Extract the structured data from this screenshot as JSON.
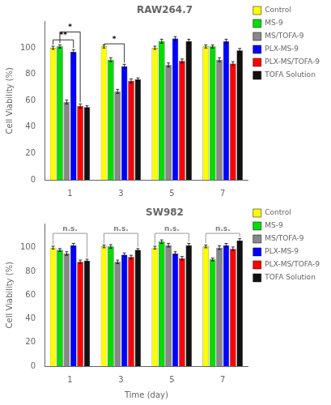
{
  "chart_data": [
    {
      "type": "bar",
      "title": "RAW264.7",
      "categories": [
        1,
        3,
        5,
        7
      ],
      "ylabel": "Cell Viability (%)",
      "ylim": [
        0,
        120
      ],
      "yticks": [
        0,
        20,
        40,
        60,
        80,
        100
      ],
      "grid": false,
      "legend": "right",
      "series": [
        {
          "name": "Control",
          "color": "#ffff00",
          "values": [
            100,
            101,
            100,
            101
          ],
          "errors": [
            1.2,
            1.2,
            1.2,
            1.2
          ]
        },
        {
          "name": "MS-9",
          "color": "#00dd00",
          "values": [
            101,
            91,
            105,
            101
          ],
          "errors": [
            1.2,
            1.5,
            1.5,
            1.2
          ]
        },
        {
          "name": "MS/TOFA-9",
          "color": "#888888",
          "values": [
            59,
            67,
            87,
            91
          ],
          "errors": [
            1.5,
            1.5,
            1.5,
            1.5
          ]
        },
        {
          "name": "PLX-MS-9",
          "color": "#0000ff",
          "values": [
            97,
            86,
            107,
            105
          ],
          "errors": [
            1.5,
            1.5,
            1.5,
            1.5
          ]
        },
        {
          "name": "PLX-MS/TOFA-9",
          "color": "#ff0000",
          "values": [
            56,
            75,
            90,
            88
          ],
          "errors": [
            1.5,
            1.5,
            1.5,
            1.5
          ]
        },
        {
          "name": "TOFA Solution",
          "color": "#111111",
          "values": [
            55,
            76,
            105,
            98
          ],
          "errors": [
            1.2,
            1.2,
            1.5,
            1.5
          ]
        }
      ],
      "annotations": [
        {
          "text": "**",
          "category": 1,
          "from": "Control",
          "to": "PLX-MS-9",
          "y": 106,
          "color": "black"
        },
        {
          "text": "*",
          "category": 1,
          "from": "MS-9",
          "to": "PLX-MS/TOFA-9",
          "y": 112,
          "color": "black"
        },
        {
          "text": "*",
          "category": 3,
          "from": "Control",
          "to": "PLX-MS-9",
          "y": 103,
          "color": "black"
        }
      ]
    },
    {
      "type": "bar",
      "title": "SW982",
      "categories": [
        1,
        3,
        5,
        7
      ],
      "xlabel": "Time (day)",
      "ylabel": "Cell Viability (%)",
      "ylim": [
        0,
        120
      ],
      "yticks": [
        0,
        20,
        40,
        60,
        80,
        100
      ],
      "grid": false,
      "legend": "right",
      "series": [
        {
          "name": "Control",
          "color": "#ffff00",
          "values": [
            100,
            101,
            100,
            101
          ],
          "errors": [
            1.2,
            1.2,
            1.2,
            1.2
          ]
        },
        {
          "name": "MS-9",
          "color": "#00dd00",
          "values": [
            98,
            101,
            105,
            90
          ],
          "errors": [
            1.2,
            1.5,
            1.5,
            1.2
          ]
        },
        {
          "name": "MS/TOFA-9",
          "color": "#888888",
          "values": [
            95,
            88,
            102,
            100
          ],
          "errors": [
            1.5,
            1.5,
            1.5,
            1.5
          ]
        },
        {
          "name": "PLX-MS-9",
          "color": "#0000ff",
          "values": [
            102,
            94,
            95,
            102
          ],
          "errors": [
            1.5,
            1.5,
            1.5,
            1.5
          ]
        },
        {
          "name": "PLX-MS/TOFA-9",
          "color": "#ff0000",
          "values": [
            88,
            92,
            91,
            99
          ],
          "errors": [
            1.5,
            1.5,
            1.5,
            1.5
          ]
        },
        {
          "name": "TOFA Solution",
          "color": "#111111",
          "values": [
            89,
            98,
            102,
            106
          ],
          "errors": [
            1.2,
            1.2,
            1.5,
            1.5
          ]
        }
      ],
      "annotations": [
        {
          "text": "n.s.",
          "category": 1,
          "from": "Control",
          "to": "TOFA Solution",
          "y": 112,
          "color": "gray"
        },
        {
          "text": "n.s.",
          "category": 3,
          "from": "Control",
          "to": "TOFA Solution",
          "y": 112,
          "color": "gray"
        },
        {
          "text": "n.s.",
          "category": 5,
          "from": "Control",
          "to": "TOFA Solution",
          "y": 112,
          "color": "gray"
        },
        {
          "text": "n.s.",
          "category": 7,
          "from": "Control",
          "to": "TOFA Solution",
          "y": 112,
          "color": "gray"
        }
      ]
    }
  ]
}
